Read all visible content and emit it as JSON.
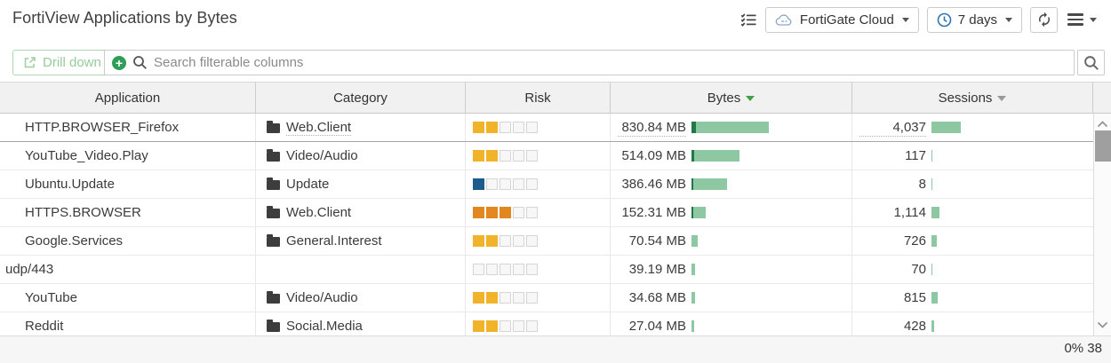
{
  "header": {
    "title": "FortiView Applications by Bytes",
    "device_dropdown": {
      "label": "FortiGate Cloud"
    },
    "time_dropdown": {
      "label": "7 days"
    }
  },
  "toolbar": {
    "drilldown_label": "Drill down",
    "search_placeholder": "Search filterable columns"
  },
  "table": {
    "columns": [
      {
        "label": "Application",
        "sorted": false
      },
      {
        "label": "Category",
        "sorted": false
      },
      {
        "label": "Risk",
        "sorted": false
      },
      {
        "label": "Bytes",
        "sorted": true
      },
      {
        "label": "Sessions",
        "sorted": false,
        "sortable": true
      }
    ],
    "rows": [
      {
        "application": "HTTP.BROWSER_Firefox",
        "category": "Web.Client",
        "risk_filled": 2,
        "risk_color_key": "risk_medium",
        "bytes": "830.84 MB",
        "bytes_mb": 830.84,
        "sessions": "4,037",
        "sessions_count": 4037,
        "selected": true
      },
      {
        "application": "YouTube_Video.Play",
        "category": "Video/Audio",
        "risk_filled": 2,
        "risk_color_key": "risk_medium",
        "bytes": "514.09 MB",
        "bytes_mb": 514.09,
        "sessions": "117",
        "sessions_count": 117
      },
      {
        "application": "Ubuntu.Update",
        "category": "Update",
        "risk_filled": 1,
        "risk_color_key": "risk_low",
        "bytes": "386.46 MB",
        "bytes_mb": 386.46,
        "sessions": "8",
        "sessions_count": 8
      },
      {
        "application": "HTTPS.BROWSER",
        "category": "Web.Client",
        "risk_filled": 3,
        "risk_color_key": "risk_elevated",
        "bytes": "152.31 MB",
        "bytes_mb": 152.31,
        "sessions": "1,114",
        "sessions_count": 1114
      },
      {
        "application": "Google.Services",
        "category": "General.Interest",
        "risk_filled": 2,
        "risk_color_key": "risk_medium",
        "bytes": "70.54 MB",
        "bytes_mb": 70.54,
        "sessions": "726",
        "sessions_count": 726
      },
      {
        "application": "udp/443",
        "category": "",
        "risk_filled": 0,
        "risk_color_key": null,
        "bytes": "39.19 MB",
        "bytes_mb": 39.19,
        "sessions": "70",
        "sessions_count": 70,
        "compact_indent": true
      },
      {
        "application": "YouTube",
        "category": "Video/Audio",
        "risk_filled": 2,
        "risk_color_key": "risk_medium",
        "bytes": "34.68 MB",
        "bytes_mb": 34.68,
        "sessions": "815",
        "sessions_count": 815
      },
      {
        "application": "Reddit",
        "category": "Social.Media",
        "risk_filled": 2,
        "risk_color_key": "risk_medium",
        "bytes": "27.04 MB",
        "bytes_mb": 27.04,
        "sessions": "428",
        "sessions_count": 428
      }
    ]
  },
  "footer": {
    "status": "0% 38"
  },
  "colors": {
    "risk_low": "#1d5d8c",
    "risk_medium": "#f0b32a",
    "risk_elevated": "#e2861f",
    "bar_green": "#8dc8a2",
    "bar_green_dark": "#20784a",
    "accent_green": "#2f9d55",
    "sort_active_green": "#3fa14b"
  },
  "icons": {
    "column_settings": "checklist",
    "device": "cloud",
    "time": "clock",
    "refresh": "circular-arrows",
    "menu": "hamburger",
    "drilldown": "open-external",
    "add_filter": "plus-circle",
    "search": "magnifier",
    "category": "folder",
    "sort": "caret-down"
  }
}
